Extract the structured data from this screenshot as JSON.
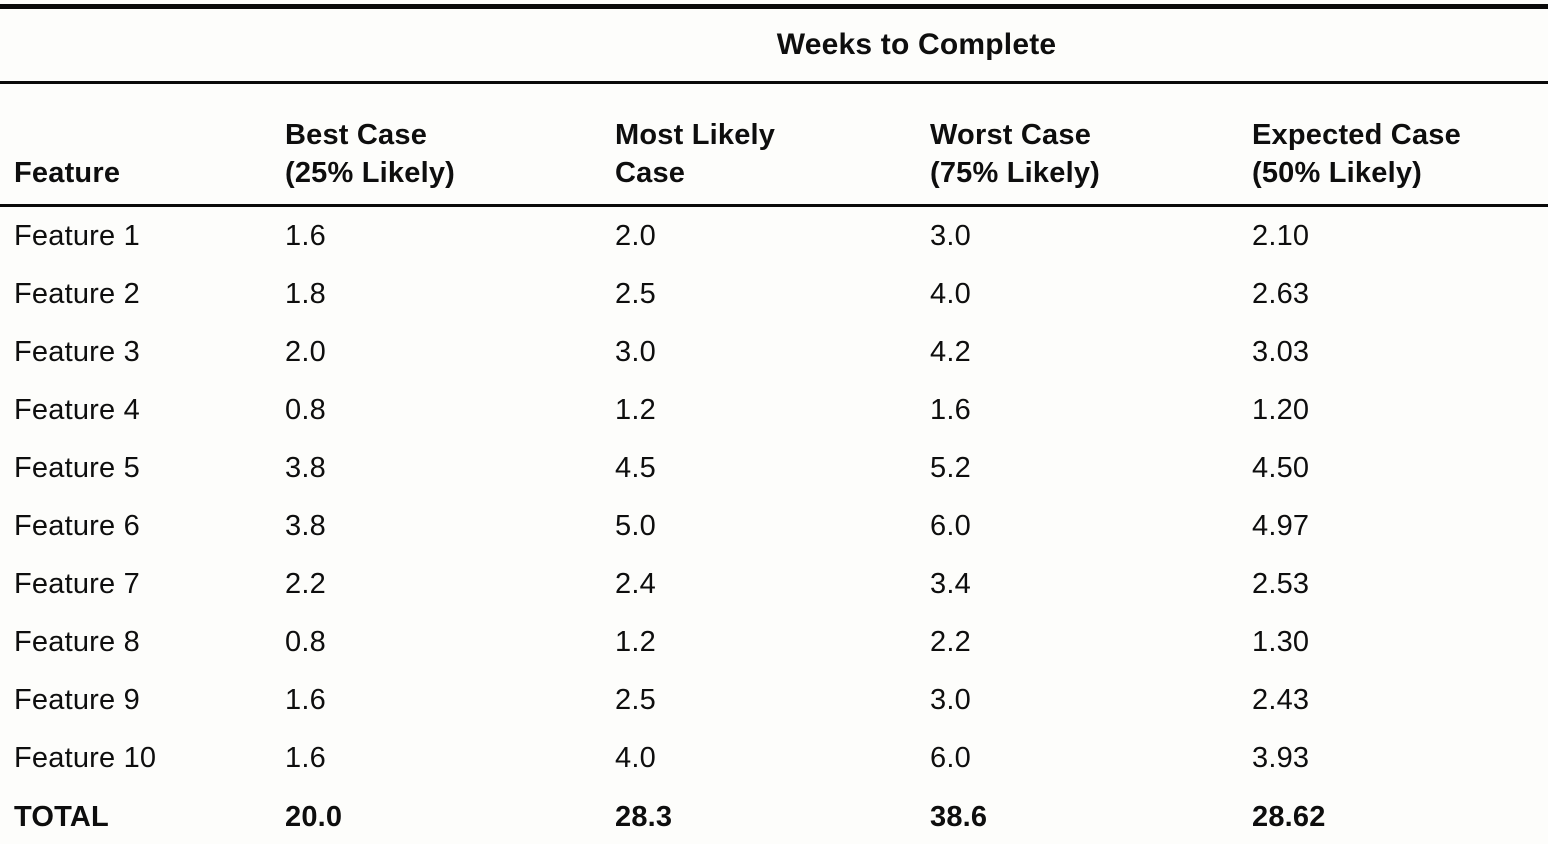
{
  "page": {
    "background": "#fdfdfb",
    "text_color": "#0e0e0e",
    "rule_color": "#0a0a0a"
  },
  "table": {
    "span_header": "Weeks to Complete",
    "columns": [
      "Feature",
      "Best Case\n(25% Likely)",
      "Most Likely\nCase",
      "Worst Case\n(75% Likely)",
      "Expected Case\n(50% Likely)"
    ],
    "rows": [
      [
        "Feature 1",
        "1.6",
        "2.0",
        "3.0",
        "2.10"
      ],
      [
        "Feature 2",
        "1.8",
        "2.5",
        "4.0",
        "2.63"
      ],
      [
        "Feature 3",
        "2.0",
        "3.0",
        "4.2",
        "3.03"
      ],
      [
        "Feature 4",
        "0.8",
        "1.2",
        "1.6",
        "1.20"
      ],
      [
        "Feature 5",
        "3.8",
        "4.5",
        "5.2",
        "4.50"
      ],
      [
        "Feature 6",
        "3.8",
        "5.0",
        "6.0",
        "4.97"
      ],
      [
        "Feature 7",
        "2.2",
        "2.4",
        "3.4",
        "2.53"
      ],
      [
        "Feature 8",
        "0.8",
        "1.2",
        "2.2",
        "1.30"
      ],
      [
        "Feature 9",
        "1.6",
        "2.5",
        "3.0",
        "2.43"
      ],
      [
        "Feature 10",
        "1.6",
        "4.0",
        "6.0",
        "3.93"
      ]
    ],
    "total_row": [
      "TOTAL",
      "20.0",
      "28.3",
      "38.6",
      "28.62"
    ]
  }
}
